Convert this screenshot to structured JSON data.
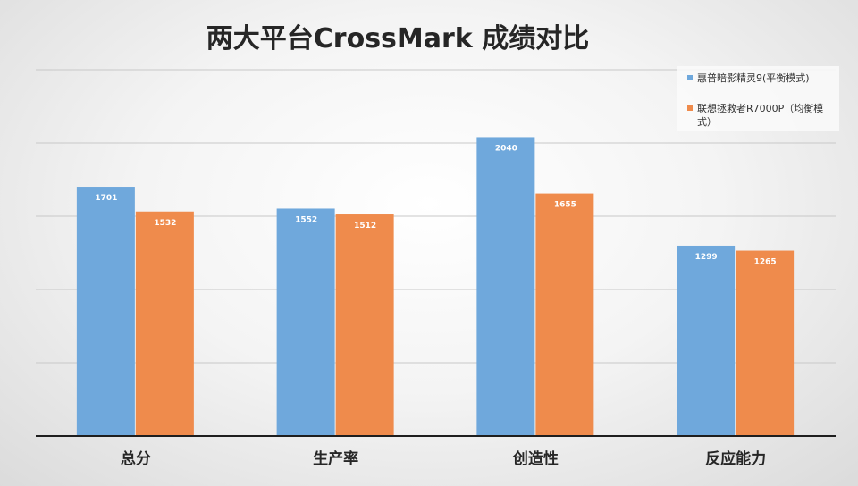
{
  "chart_data": {
    "type": "bar",
    "title": "两大平台CrossMark 成绩对比",
    "categories": [
      "总分",
      "生产率",
      "创造性",
      "反应能力"
    ],
    "series": [
      {
        "name": "惠普暗影精灵9(平衡模式)",
        "values": [
          1701,
          1552,
          2040,
          1299
        ],
        "color": "#6fa8dc"
      },
      {
        "name": "联想拯救者R7000P（均衡模式）",
        "values": [
          1532,
          1512,
          1655,
          1265
        ],
        "color": "#ef8b4c"
      }
    ],
    "ylim": [
      0,
      2500
    ],
    "gridlines": [
      500,
      1000,
      1500,
      2000,
      2500
    ],
    "grid": true,
    "legend_position": "top-right",
    "data_labels": "inside-end"
  }
}
